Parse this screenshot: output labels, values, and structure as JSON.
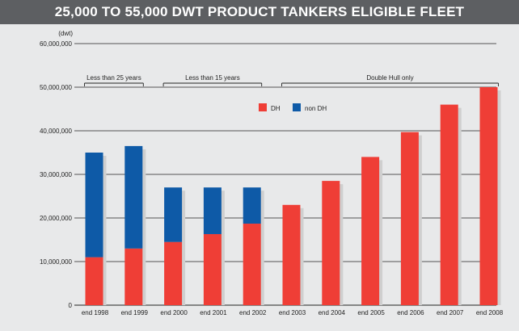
{
  "title": "25,000 TO 55,000 DWT PRODUCT TANKERS ELIGIBLE FLEET",
  "colors": {
    "dh": "#ef3e36",
    "non_dh": "#0e5aa7",
    "shadow": "#cfcfcf",
    "grid": "#222222"
  },
  "chart_data": {
    "type": "bar",
    "stacked": true,
    "title": "25,000 TO 55,000 DWT PRODUCT TANKERS ELIGIBLE FLEET",
    "ylabel": "(dwt)",
    "ylim": [
      0,
      60000000
    ],
    "yticks": [
      "0",
      "10,000,000",
      "20,000,000",
      "30,000,000",
      "40,000,000",
      "50,000,000",
      "60,000,000"
    ],
    "grid": true,
    "legend_position": "top-center",
    "categories": [
      "end 1998",
      "end 1999",
      "end 2000",
      "end 2001",
      "end 2002",
      "end 2003",
      "end 2004",
      "end 2005",
      "end 2006",
      "end 2007",
      "end 2008"
    ],
    "series": [
      {
        "name": "DH",
        "values": [
          11000000,
          13000000,
          14500000,
          16300000,
          18700000,
          23000000,
          28500000,
          34000000,
          39700000,
          46000000,
          50000000
        ]
      },
      {
        "name": "non DH",
        "values": [
          24000000,
          23500000,
          12500000,
          10700000,
          8300000,
          0,
          0,
          0,
          0,
          0,
          0
        ]
      }
    ],
    "annotations": [
      {
        "label": "Less than 25 years",
        "from": 0,
        "to": 1
      },
      {
        "label": "Less than 15 years",
        "from": 2,
        "to": 4
      },
      {
        "label": "Double Hull only",
        "from": 5,
        "to": 10
      }
    ]
  }
}
